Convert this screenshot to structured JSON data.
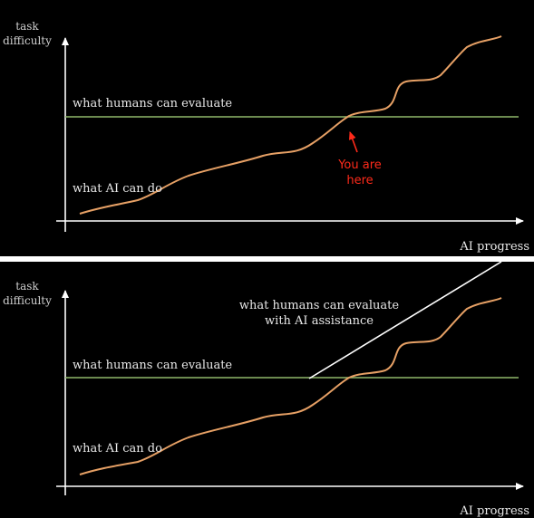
{
  "colors": {
    "background": "#000000",
    "axis": "#ffffff",
    "human_line": "#8fb86a",
    "ai_curve": "#e6a065",
    "assist_line": "#ffffff",
    "annotation": "#ff2a1a",
    "divider": "#ffffff"
  },
  "top": {
    "y_axis_label_line1": "task",
    "y_axis_label_line2": "difficulty",
    "x_axis_label": "AI progress",
    "human_line_label": "what humans can evaluate",
    "ai_curve_label": "what AI can do",
    "annotation_line1": "You are",
    "annotation_line2": "here"
  },
  "bottom": {
    "y_axis_label_line1": "task",
    "y_axis_label_line2": "difficulty",
    "x_axis_label": "AI progress",
    "human_line_label": "what humans can evaluate",
    "ai_curve_label": "what AI can do",
    "assist_label_line1": "what humans can evaluate",
    "assist_label_line2": "with AI assistance"
  }
}
